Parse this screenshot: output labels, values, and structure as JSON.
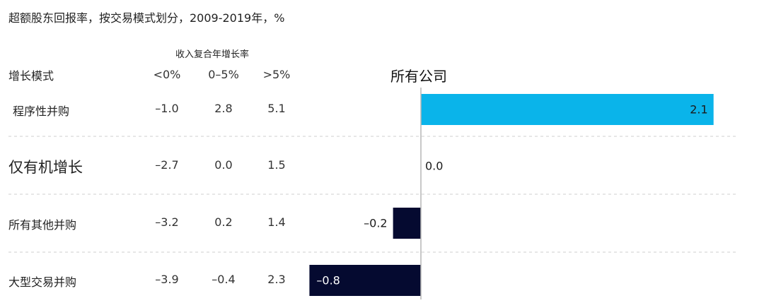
{
  "title": "超额股东回报率，按交易模式划分，2009-2019年，%",
  "table": {
    "metric_header": "收入复合年增长率",
    "mode_header": "增长模式",
    "column_headers": [
      "<0%",
      "0–5%",
      ">5%"
    ],
    "rows": [
      {
        "label": "程序性并购",
        "values": [
          "–1.0",
          "2.8",
          "5.1"
        ]
      },
      {
        "label": "仅有机增长",
        "values": [
          "–2.7",
          "0.0",
          "1.5"
        ]
      },
      {
        "label": "所有其他并购",
        "values": [
          "–3.2",
          "0.2",
          "1.4"
        ]
      },
      {
        "label": "大型交易并购",
        "values": [
          "–3.9",
          "–0.4",
          "2.3"
        ]
      }
    ]
  },
  "chart_data": {
    "type": "bar",
    "orientation": "horizontal",
    "title": "所有公司",
    "categories": [
      "程序性并购",
      "仅有机增长",
      "所有其他并购",
      "大型交易并购"
    ],
    "values": [
      2.1,
      0.0,
      -0.2,
      -0.8
    ],
    "value_labels": [
      "2.1",
      "0.0",
      "–0.2",
      "–0.8"
    ],
    "colors": {
      "positive": "#0ab4ea",
      "negative": "#050a30",
      "axis": "#b5b5b5",
      "divider": "#cfcfcf",
      "label_dark": "#1a1a1a",
      "label_light": "#ffffff"
    }
  }
}
